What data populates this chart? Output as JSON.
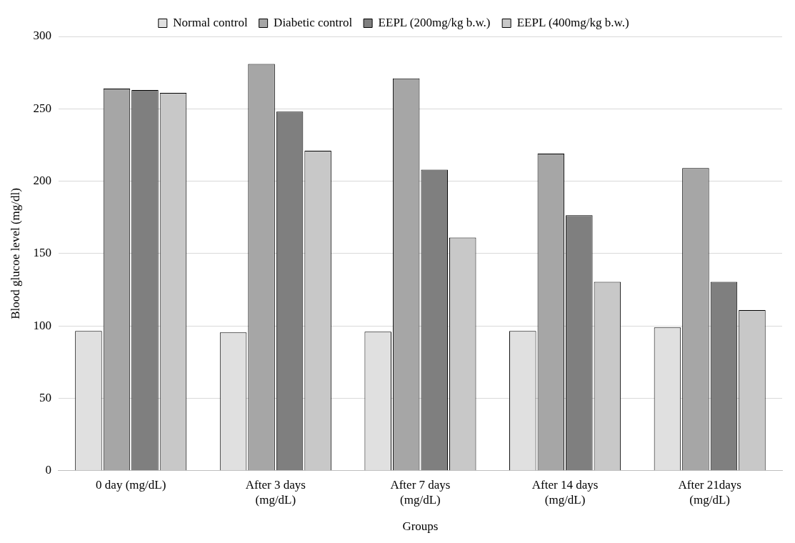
{
  "chart_data": {
    "type": "bar",
    "xlabel": "Groups",
    "ylabel": "Blood glucoe level (mg/dl)",
    "categories": [
      "0 day (mg/dL)",
      "After 3 days (mg/dL)",
      "After 7 days (mg/dL)",
      "After 14 days (mg/dL)",
      "After 21days (mg/dL)"
    ],
    "series": [
      {
        "name": "Normal control",
        "color": "#e0e0e0",
        "values": [
          96.5,
          95.5,
          96,
          96.5,
          99
        ]
      },
      {
        "name": "Diabetic control",
        "color": "#a6a6a6",
        "values": [
          264,
          281,
          271,
          219,
          209
        ]
      },
      {
        "name": "EEPL (200mg/kg b.w.)",
        "color": "#7f7f7f",
        "values": [
          263,
          248,
          208,
          176.5,
          130.5
        ]
      },
      {
        "name": "EEPL (400mg/kg b.w.)",
        "color": "#c8c8c8",
        "values": [
          261,
          221,
          161,
          130.5,
          111
        ]
      }
    ],
    "ylim": [
      0,
      300
    ],
    "yticks": [
      0,
      50,
      100,
      150,
      200,
      250,
      300
    ],
    "grid": "y",
    "legend": "top"
  }
}
